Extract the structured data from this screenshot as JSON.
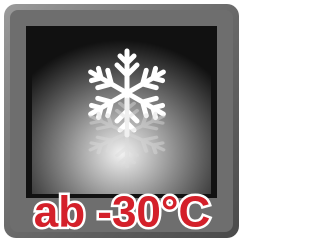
{
  "label": "ab -30°C"
}
